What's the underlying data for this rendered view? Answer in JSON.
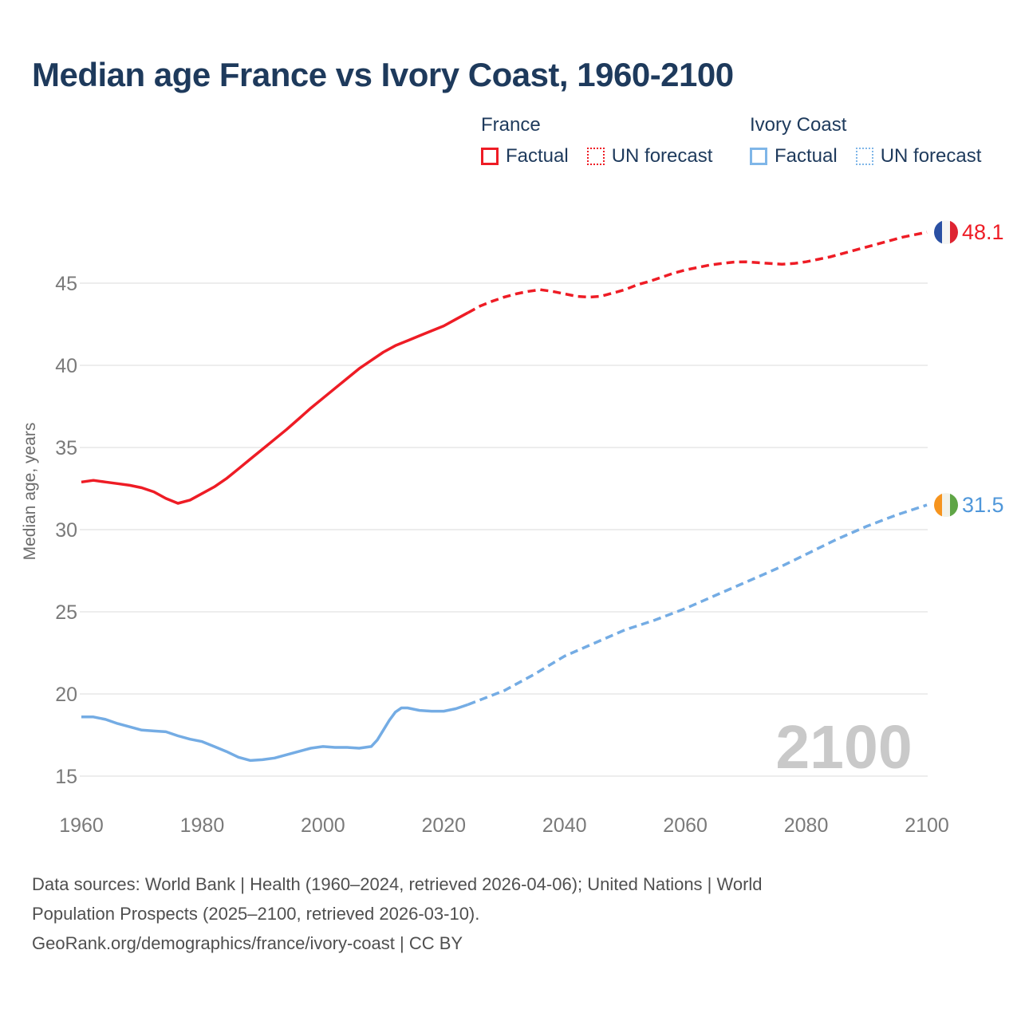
{
  "title": "Median age France vs Ivory Coast, 1960-2100",
  "legend": {
    "groups": [
      {
        "label": "France",
        "color": "#ee1c25",
        "items": [
          {
            "label": "Factual",
            "style": "solid"
          },
          {
            "label": "UN forecast",
            "style": "dotted"
          }
        ]
      },
      {
        "label": "Ivory Coast",
        "color": "#7fb6e8",
        "items": [
          {
            "label": "Factual",
            "style": "solid"
          },
          {
            "label": "UN forecast",
            "style": "dotted"
          }
        ]
      }
    ]
  },
  "watermark": "2100",
  "end_labels": {
    "france": {
      "value": "48.1",
      "text_color": "#ee1c25",
      "flag_stripes": [
        "#2a50a3",
        "#f5f5f3",
        "#de2432"
      ]
    },
    "ivory_coast": {
      "value": "31.5",
      "text_color": "#4f97da",
      "flag_stripes": [
        "#f6941e",
        "#f2f2ea",
        "#5fa546"
      ]
    }
  },
  "footer": {
    "lines": [
      "Data sources: World Bank | Health (1960–2024, retrieved 2026-04-06); United Nations | World",
      "Population Prospects (2025–2100, retrieved 2026-03-10).",
      "GeoRank.org/demographics/france/ivory-coast | CC BY"
    ]
  },
  "chart_data": {
    "type": "line",
    "title": "Median age France vs Ivory Coast, 1960-2100",
    "xlabel": "",
    "ylabel": "Median age, years",
    "xlim": [
      1960,
      2100
    ],
    "ylim": [
      14.5,
      48.6
    ],
    "x_ticks": [
      1960,
      1980,
      2000,
      2020,
      2040,
      2060,
      2080,
      2100
    ],
    "y_ticks": [
      15,
      20,
      25,
      30,
      35,
      40,
      45
    ],
    "grid": "horizontal",
    "legend_position": "top-right",
    "colors": {
      "france": "#ee1c25",
      "ivory_coast": "#74ace4",
      "grid": "#e7e7e7",
      "axis_text": "#7a7a7a",
      "watermark": "#c9c9c9"
    },
    "series": [
      {
        "name": "France Factual",
        "style": "solid",
        "color": "#ee1c25",
        "points": [
          [
            1960,
            32.9
          ],
          [
            1962,
            33.0
          ],
          [
            1964,
            32.9
          ],
          [
            1966,
            32.8
          ],
          [
            1968,
            32.7
          ],
          [
            1970,
            32.55
          ],
          [
            1972,
            32.3
          ],
          [
            1974,
            31.9
          ],
          [
            1976,
            31.6
          ],
          [
            1978,
            31.8
          ],
          [
            1980,
            32.2
          ],
          [
            1982,
            32.6
          ],
          [
            1984,
            33.1
          ],
          [
            1986,
            33.7
          ],
          [
            1988,
            34.3
          ],
          [
            1990,
            34.9
          ],
          [
            1992,
            35.5
          ],
          [
            1994,
            36.1
          ],
          [
            1996,
            36.75
          ],
          [
            1998,
            37.4
          ],
          [
            2000,
            38.0
          ],
          [
            2002,
            38.6
          ],
          [
            2004,
            39.2
          ],
          [
            2006,
            39.8
          ],
          [
            2008,
            40.3
          ],
          [
            2010,
            40.8
          ],
          [
            2012,
            41.2
          ],
          [
            2014,
            41.5
          ],
          [
            2016,
            41.8
          ],
          [
            2018,
            42.1
          ],
          [
            2020,
            42.4
          ],
          [
            2022,
            42.8
          ],
          [
            2024,
            43.2
          ]
        ]
      },
      {
        "name": "France UN forecast",
        "style": "dashed",
        "color": "#ee1c25",
        "points": [
          [
            2024,
            43.2
          ],
          [
            2026,
            43.6
          ],
          [
            2028,
            43.9
          ],
          [
            2030,
            44.15
          ],
          [
            2032,
            44.35
          ],
          [
            2034,
            44.5
          ],
          [
            2036,
            44.6
          ],
          [
            2038,
            44.5
          ],
          [
            2040,
            44.35
          ],
          [
            2042,
            44.2
          ],
          [
            2044,
            44.15
          ],
          [
            2046,
            44.2
          ],
          [
            2048,
            44.4
          ],
          [
            2050,
            44.6
          ],
          [
            2052,
            44.9
          ],
          [
            2054,
            45.1
          ],
          [
            2056,
            45.35
          ],
          [
            2058,
            45.6
          ],
          [
            2060,
            45.8
          ],
          [
            2062,
            45.95
          ],
          [
            2064,
            46.1
          ],
          [
            2066,
            46.2
          ],
          [
            2068,
            46.28
          ],
          [
            2070,
            46.3
          ],
          [
            2072,
            46.25
          ],
          [
            2074,
            46.2
          ],
          [
            2076,
            46.15
          ],
          [
            2078,
            46.2
          ],
          [
            2080,
            46.3
          ],
          [
            2082,
            46.45
          ],
          [
            2084,
            46.6
          ],
          [
            2086,
            46.8
          ],
          [
            2088,
            47.0
          ],
          [
            2090,
            47.2
          ],
          [
            2092,
            47.4
          ],
          [
            2094,
            47.6
          ],
          [
            2096,
            47.8
          ],
          [
            2098,
            47.95
          ],
          [
            2100,
            48.1
          ]
        ]
      },
      {
        "name": "Ivory Coast Factual",
        "style": "solid",
        "color": "#74ace4",
        "points": [
          [
            1960,
            18.6
          ],
          [
            1962,
            18.6
          ],
          [
            1964,
            18.45
          ],
          [
            1966,
            18.2
          ],
          [
            1968,
            18.0
          ],
          [
            1970,
            17.8
          ],
          [
            1972,
            17.75
          ],
          [
            1974,
            17.7
          ],
          [
            1976,
            17.45
          ],
          [
            1978,
            17.25
          ],
          [
            1980,
            17.1
          ],
          [
            1982,
            16.8
          ],
          [
            1984,
            16.5
          ],
          [
            1986,
            16.15
          ],
          [
            1988,
            15.95
          ],
          [
            1990,
            16.0
          ],
          [
            1992,
            16.1
          ],
          [
            1994,
            16.3
          ],
          [
            1996,
            16.5
          ],
          [
            1998,
            16.7
          ],
          [
            2000,
            16.8
          ],
          [
            2002,
            16.75
          ],
          [
            2004,
            16.75
          ],
          [
            2006,
            16.7
          ],
          [
            2008,
            16.8
          ],
          [
            2009,
            17.2
          ],
          [
            2010,
            17.8
          ],
          [
            2011,
            18.4
          ],
          [
            2012,
            18.9
          ],
          [
            2013,
            19.15
          ],
          [
            2014,
            19.15
          ],
          [
            2016,
            19.0
          ],
          [
            2018,
            18.95
          ],
          [
            2020,
            18.95
          ],
          [
            2022,
            19.1
          ],
          [
            2024,
            19.35
          ]
        ]
      },
      {
        "name": "Ivory Coast UN forecast",
        "style": "dashed",
        "color": "#74ace4",
        "points": [
          [
            2024,
            19.35
          ],
          [
            2030,
            20.2
          ],
          [
            2035,
            21.2
          ],
          [
            2040,
            22.3
          ],
          [
            2045,
            23.1
          ],
          [
            2050,
            23.9
          ],
          [
            2055,
            24.5
          ],
          [
            2060,
            25.2
          ],
          [
            2065,
            26.0
          ],
          [
            2070,
            26.8
          ],
          [
            2075,
            27.6
          ],
          [
            2080,
            28.5
          ],
          [
            2085,
            29.4
          ],
          [
            2090,
            30.2
          ],
          [
            2095,
            30.9
          ],
          [
            2100,
            31.5
          ]
        ]
      }
    ],
    "end_annotations": [
      {
        "series": "France",
        "year": 2100,
        "value": 48.1,
        "label": "48.1",
        "marker": "france-flag-circle"
      },
      {
        "series": "Ivory Coast",
        "year": 2100,
        "value": 31.5,
        "label": "31.5",
        "marker": "ivory-coast-flag-circle"
      }
    ]
  }
}
